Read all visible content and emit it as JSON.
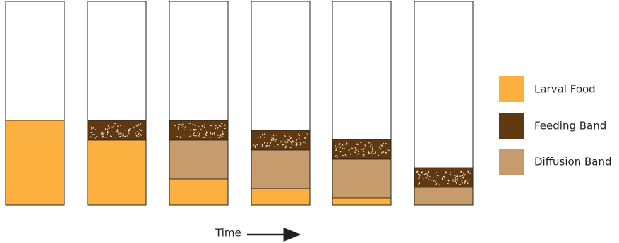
{
  "legend": {
    "items": [
      {
        "label": "Larval Food",
        "color": "#fbb040"
      },
      {
        "label": "Feeding Band",
        "color": "#603913"
      },
      {
        "label": "Diffusion Band",
        "color": "#c69c6d"
      }
    ]
  },
  "axis_label": "Time"
}
